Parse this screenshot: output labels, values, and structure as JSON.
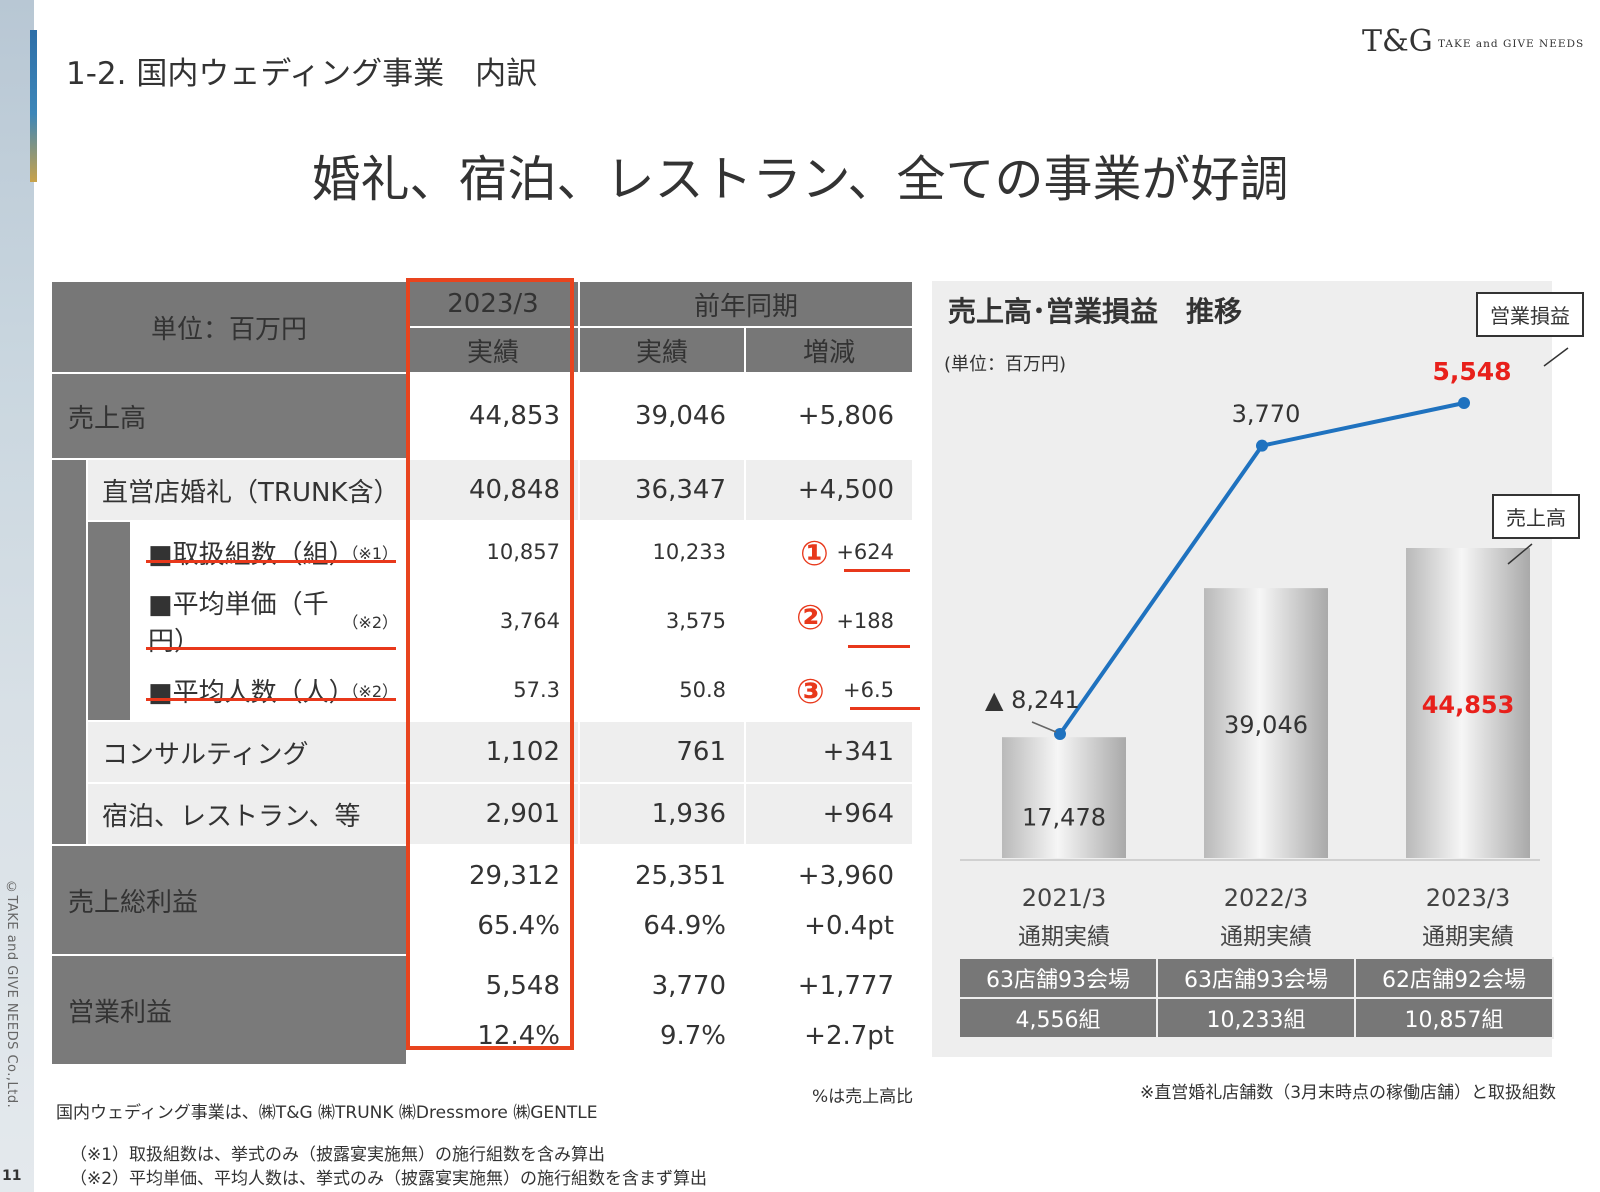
{
  "page": {
    "section_title": "1-2.  国内ウェディング事業　内訳",
    "headline": "婚礼、宿泊、レストラン、全ての事業が好調",
    "logo_mark": "T&G",
    "logo_text": "TAKE and GIVE NEEDS",
    "copyright": "©TAKE and GIVE NEEDS Co.,Ltd.",
    "page_number": "11"
  },
  "table": {
    "unit_label": "単位：百万円",
    "col_current_year": "2023/3",
    "col_current_sub": "実績",
    "col_prev_group": "前年同期",
    "col_prev_actual": "実績",
    "col_change": "増減",
    "rows": {
      "sales": {
        "label": "売上高",
        "current": "44,853",
        "prev": "39,046",
        "change": "+5,806"
      },
      "direct_wedding": {
        "label": "直営店婚礼（TRUNK含）",
        "current": "40,848",
        "prev": "36,347",
        "change": "+4,500"
      },
      "couples": {
        "label": "■取扱組数（組）",
        "note": "（※1）",
        "current": "10,857",
        "prev": "10,233",
        "marker": "①",
        "change": "+624"
      },
      "avg_price": {
        "label": "■平均単価（千円）",
        "note": "（※2）",
        "current": "3,764",
        "prev": "3,575",
        "marker": "②",
        "change": "+188"
      },
      "avg_guests": {
        "label": "■平均人数（人）",
        "note": "（※2）",
        "current": "57.3",
        "prev": "50.8",
        "marker": "③",
        "change": "+6.5"
      },
      "consulting": {
        "label": "コンサルティング",
        "current": "1,102",
        "prev": "761",
        "change": "+341"
      },
      "hotel": {
        "label": "宿泊、レストラン、等",
        "current": "2,901",
        "prev": "1,936",
        "change": "+964"
      },
      "gross_profit": {
        "label": "売上総利益",
        "current": "29,312",
        "current_pct": "65.4%",
        "prev": "25,351",
        "prev_pct": "64.9%",
        "change": "+3,960",
        "change_pct": "+0.4pt"
      },
      "operating_profit": {
        "label": "営業利益",
        "current": "5,548",
        "current_pct": "12.4%",
        "prev": "3,770",
        "prev_pct": "9.7%",
        "change": "+1,777",
        "change_pct": "+2.7pt"
      }
    },
    "footnote_pct": "%は売上高比",
    "footnote_companies": "国内ウェディング事業は、㈱T&G ㈱TRUNK ㈱Dressmore ㈱GENTLE",
    "footnote_1": "（※1）取扱組数は、挙式のみ（披露宴実施無）の施行組数を含み算出",
    "footnote_2": "（※2）平均単価、平均人数は、挙式のみ（披露宴実施無）の施行組数を含まず算出"
  },
  "chart_data": {
    "type": "bar",
    "title": "売上高･営業損益　推移",
    "unit": "(単位：百万円)",
    "categories": [
      "2021/3",
      "2022/3",
      "2023/3"
    ],
    "category_sublabels": [
      "通期実績",
      "通期実績",
      "通期実績"
    ],
    "series": [
      {
        "name": "売上高",
        "type": "bar",
        "values": [
          17478,
          39046,
          44853
        ],
        "labels": [
          "17,478",
          "39,046",
          "44,853"
        ]
      },
      {
        "name": "営業損益",
        "type": "line",
        "values": [
          -8241,
          3770,
          5548
        ],
        "labels": [
          "▲ 8,241",
          "3,770",
          "5,548"
        ],
        "color": "#1f72bf"
      }
    ],
    "highlight_color": "#e8201b",
    "store_counts": [
      "63店舗93会場",
      "63店舗93会場",
      "62店舗92会場"
    ],
    "couple_counts": [
      "4,556組",
      "10,233組",
      "10,857組"
    ],
    "footnote": "※直営婚礼店舗数（3月末時点の稼働店舗）と取扱組数"
  }
}
